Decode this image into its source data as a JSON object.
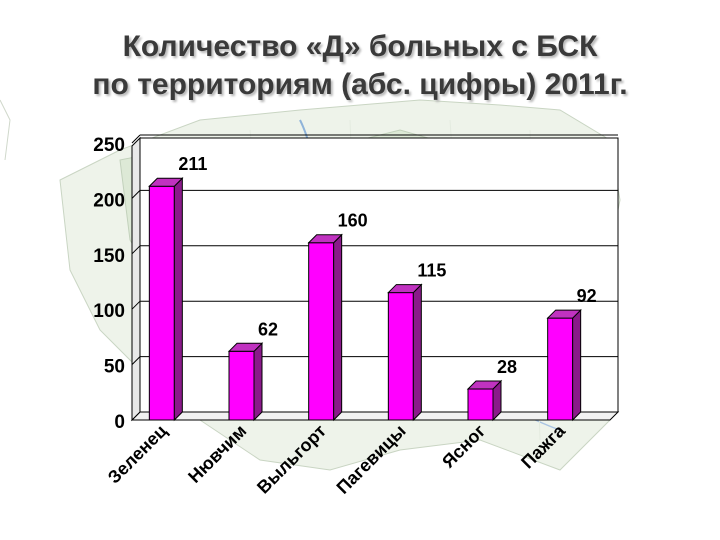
{
  "title_line1": "Количество «Д» больных с БСК",
  "title_line2": "по территориям (абс. цифры)  2011г.",
  "colors": {
    "bar_front": "#ff00ff",
    "bar_side": "#8a1a8a",
    "bar_top": "#c032c0",
    "plot_bg": "#ffffff",
    "text": "#000000"
  },
  "chart_data": {
    "type": "bar",
    "categories": [
      "Зеленец",
      "Нювчим",
      "Выльгорт",
      "Пагевицы",
      "Ясног",
      "Пажга"
    ],
    "values": [
      211,
      62,
      160,
      115,
      28,
      92
    ],
    "yticks": [
      0,
      50,
      100,
      150,
      200,
      250
    ],
    "ylim": [
      0,
      250
    ],
    "grid": true,
    "legend": "none",
    "bar_3d": true
  }
}
